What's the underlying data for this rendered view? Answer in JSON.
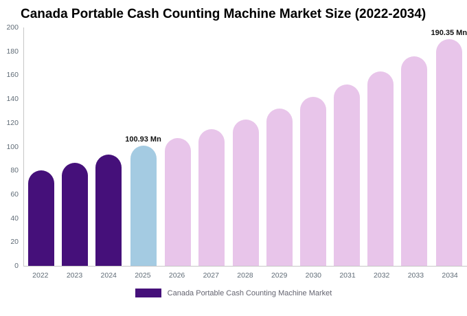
{
  "chart_data": {
    "type": "bar",
    "title": "Canada Portable Cash Counting Machine Market Size (2022-2034)",
    "unit": "Mn",
    "categories": [
      "2022",
      "2023",
      "2024",
      "2025",
      "2026",
      "2027",
      "2028",
      "2029",
      "2030",
      "2031",
      "2032",
      "2033",
      "2034"
    ],
    "values": [
      80.2,
      86.3,
      93.3,
      100.93,
      107.2,
      114.6,
      123.0,
      131.8,
      141.6,
      152.2,
      163.3,
      175.8,
      190.35
    ],
    "ylim": [
      0,
      200
    ],
    "yticks": [
      0,
      20,
      40,
      60,
      80,
      100,
      120,
      140,
      160,
      180,
      200
    ],
    "grid": false,
    "bar_colors": [
      "#45107a",
      "#45107a",
      "#45107a",
      "#a4cbe2",
      "#e8c5ea",
      "#e8c5ea",
      "#e8c5ea",
      "#e8c5ea",
      "#e8c5ea",
      "#e8c5ea",
      "#e8c5ea",
      "#e8c5ea",
      "#e8c5ea"
    ],
    "colors": {
      "historical": "#45107a",
      "highlight": "#a4cbe2",
      "forecast": "#e8c5ea",
      "axis_line": "#c6c6c6",
      "tick_text": "#5f6b76"
    },
    "annotations": {
      "2025": "100.93 Mn",
      "2034": "190.35 Mn"
    },
    "legend": {
      "position": "bottom",
      "label": "Canada Portable Cash Counting Machine Market",
      "color": "#45107a"
    }
  }
}
